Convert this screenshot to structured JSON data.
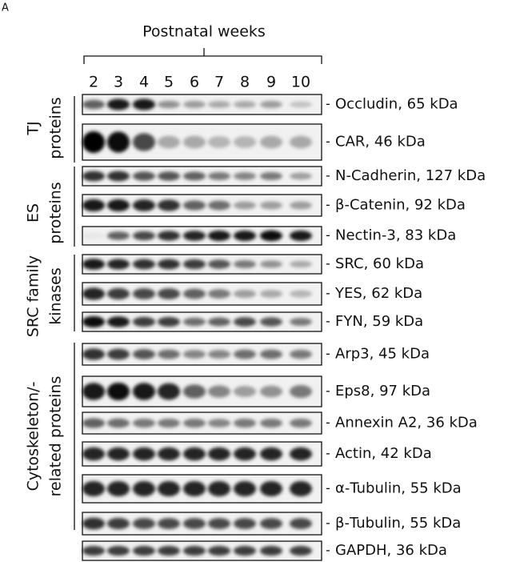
{
  "panel_label": "A",
  "header": {
    "title": "Postnatal weeks",
    "lanes": [
      "2",
      "3",
      "4",
      "5",
      "6",
      "7",
      "8",
      "9",
      "10"
    ]
  },
  "groups": [
    {
      "lines": [
        "TJ",
        "proteins"
      ]
    },
    {
      "lines": [
        "ES",
        "proteins"
      ]
    },
    {
      "lines": [
        "SRC family",
        "kinases"
      ]
    },
    {
      "lines": [
        "Cytoskeleton/-",
        "related proteins"
      ]
    }
  ],
  "blots": [
    {
      "label": "Occludin, 65 kDa"
    },
    {
      "label": "CAR, 46 kDa"
    },
    {
      "label": "N-Cadherin, 127 kDa"
    },
    {
      "label": "β-Catenin, 92 kDa"
    },
    {
      "label": "Nectin-3, 83 kDa"
    },
    {
      "label": "SRC, 60 kDa"
    },
    {
      "label": "YES, 62 kDa"
    },
    {
      "label": "FYN, 59 kDa"
    },
    {
      "label": "Arp3, 45 kDa"
    },
    {
      "label": "Eps8, 97 kDa"
    },
    {
      "label": "Annexin A2, 36 kDa"
    },
    {
      "label": "Actin, 42 kDa"
    },
    {
      "label": "α-Tubulin, 55 kDa"
    },
    {
      "label": "β-Tubulin, 55 kDa"
    },
    {
      "label": "GAPDH, 36 kDa"
    }
  ]
}
